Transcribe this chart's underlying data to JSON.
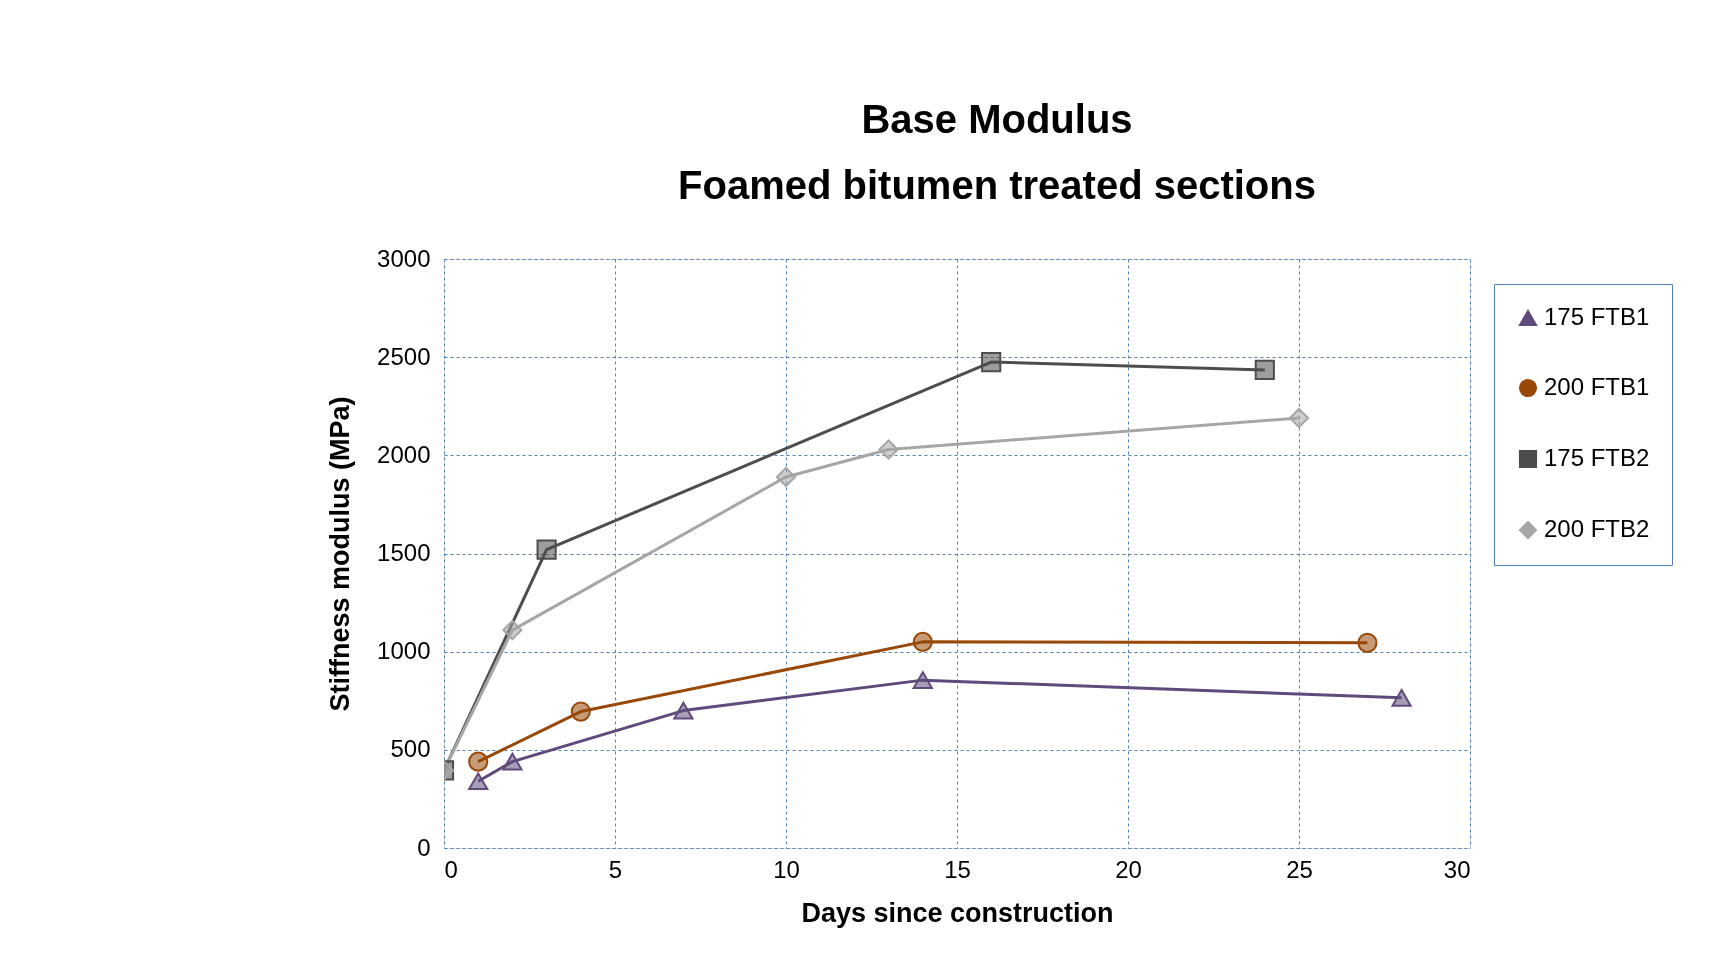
{
  "chart_data": {
    "type": "line",
    "title": "Base Modulus",
    "subtitle": "Foamed bitumen treated sections",
    "xlabel": "Days since construction",
    "ylabel": "Stiffness modulus (MPa)",
    "xlim": [
      0,
      30
    ],
    "xticks": [
      0,
      5,
      10,
      15,
      20,
      25,
      30
    ],
    "ylim": [
      0,
      3000
    ],
    "yticks": [
      0,
      500,
      1000,
      1500,
      2000,
      2500,
      3000
    ],
    "grid": true,
    "legend": "right",
    "series": [
      {
        "name": "175 FTB1",
        "color": "#604a7b",
        "marker": "triangle",
        "x": [
          1,
          2,
          7,
          14,
          28
        ],
        "values": [
          340,
          440,
          700,
          855,
          765
        ]
      },
      {
        "name": "200 FTB1",
        "color": "#984807",
        "marker": "circle",
        "x": [
          1,
          4,
          14,
          27
        ],
        "values": [
          440,
          695,
          1050,
          1045
        ]
      },
      {
        "name": "175 FTB2",
        "color": "#4d4d4d",
        "marker": "square",
        "x": [
          0,
          3,
          16,
          24
        ],
        "values": [
          395,
          1520,
          2475,
          2435
        ]
      },
      {
        "name": "200 FTB2",
        "color": "#a6a6a6",
        "marker": "diamond",
        "x": [
          0,
          2,
          10,
          13,
          25
        ],
        "values": [
          395,
          1110,
          1890,
          2030,
          2190
        ]
      }
    ]
  }
}
